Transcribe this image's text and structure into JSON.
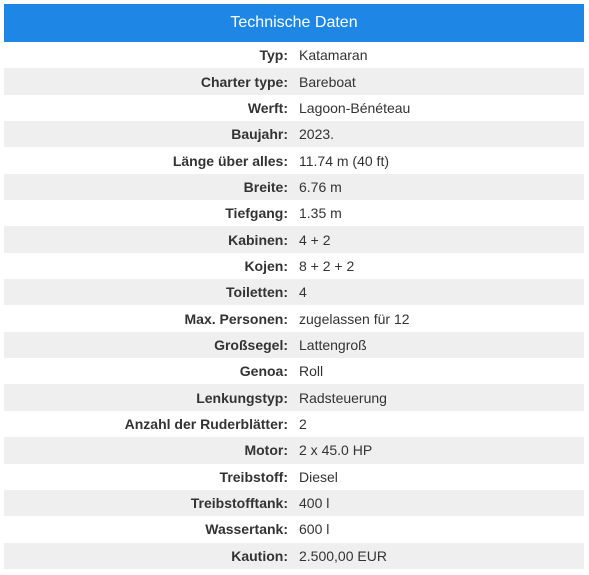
{
  "header": {
    "title": "Technische Daten"
  },
  "specs": [
    {
      "label": "Typ:",
      "value": "Katamaran"
    },
    {
      "label": "Charter type:",
      "value": "Bareboat"
    },
    {
      "label": "Werft:",
      "value": "Lagoon-Bénéteau"
    },
    {
      "label": "Baujahr:",
      "value": "2023."
    },
    {
      "label": "Länge über alles:",
      "value": "11.74 m (40 ft)"
    },
    {
      "label": "Breite:",
      "value": "6.76 m"
    },
    {
      "label": "Tiefgang:",
      "value": "1.35 m"
    },
    {
      "label": "Kabinen:",
      "value": "4 + 2"
    },
    {
      "label": "Kojen:",
      "value": "8 + 2 + 2"
    },
    {
      "label": "Toiletten:",
      "value": "4"
    },
    {
      "label": "Max. Personen:",
      "value": "zugelassen für 12"
    },
    {
      "label": "Großsegel:",
      "value": "Lattengroß"
    },
    {
      "label": "Genoa:",
      "value": "Roll"
    },
    {
      "label": "Lenkungstyp:",
      "value": "Radsteuerung"
    },
    {
      "label": "Anzahl der Ruderblätter:",
      "value": "2"
    },
    {
      "label": "Motor:",
      "value": "2 x 45.0 HP"
    },
    {
      "label": "Treibstoff:",
      "value": "Diesel"
    },
    {
      "label": "Treibstofftank:",
      "value": "400 l"
    },
    {
      "label": "Wassertank:",
      "value": "600 l"
    },
    {
      "label": "Kaution:",
      "value": "2.500,00 EUR"
    }
  ],
  "colors": {
    "header_bg": "#1e87e5",
    "row_alt_bg": "#efefef",
    "text": "#333333"
  }
}
